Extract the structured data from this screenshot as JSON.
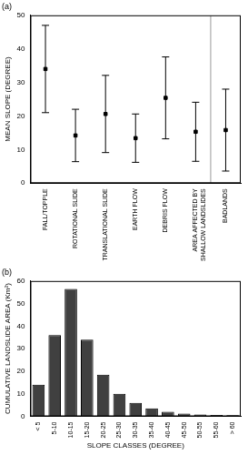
{
  "chart_data": [
    {
      "type": "errorbar",
      "title": "(a)",
      "ylabel": "MEAN SLOPE (DEGREE)",
      "categories": [
        "FALL/TOPPLE",
        "ROTATIONAL SLIDE",
        "TRANSLATIONAL SLIDE",
        "EARTH FLOW",
        "DEBRIS FLOW",
        "AREA AFFECTED BY SHALLOW LANDSLIDES",
        "BADLANDS"
      ],
      "values": [
        34,
        14.2,
        20.6,
        13.4,
        25.4,
        15.3,
        15.8
      ],
      "error": [
        13,
        7.8,
        11.5,
        7.2,
        12.2,
        8.8,
        12.2
      ],
      "color": "#000000",
      "marker": "square",
      "ylim": [
        0,
        50
      ],
      "yticks": [
        0,
        10,
        20,
        30,
        40,
        50
      ],
      "grid": false
    },
    {
      "type": "bar",
      "title": "(b)",
      "xlabel": "SLOPE CLASSES (DEGREE)",
      "ylabel": "CUMULATIVE LANDSLIDE AREA (Km²)",
      "categories": [
        "< 5",
        "5-10",
        "10-15",
        "15-20",
        "20-25",
        "25-30",
        "30-35",
        "35-40",
        "40-45",
        "45-50",
        "50-55",
        "55-60",
        "> 60"
      ],
      "values": [
        14,
        36,
        56.5,
        34,
        18.5,
        10,
        6,
        3.5,
        2,
        1.2,
        0.8,
        0.6,
        0.5
      ],
      "color": "#404040",
      "ylim": [
        0,
        60
      ],
      "yticks": [
        0,
        10,
        20,
        30,
        40,
        50,
        60
      ],
      "grid": false
    }
  ]
}
